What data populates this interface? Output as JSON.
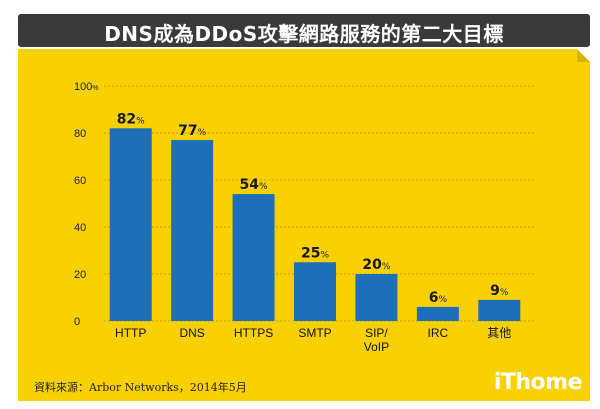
{
  "header": {
    "title": "DNS成為DDoS攻擊網路服務的第二大目標"
  },
  "footer": {
    "source": "資料來源：Arbor Networks，2014年5月",
    "brand": "iThome"
  },
  "colors": {
    "bar": "#1f6fb8",
    "panel": "#f9d103",
    "title_bg": "#3a3a3a",
    "label": "#1a1a1a"
  },
  "chart_data": {
    "type": "bar",
    "categories": [
      "HTTP",
      "DNS",
      "HTTPS",
      "SMTP",
      "SIP/ VoIP",
      "IRC",
      "其他"
    ],
    "category_lines": [
      [
        "HTTP"
      ],
      [
        "DNS"
      ],
      [
        "HTTPS"
      ],
      [
        "SMTP"
      ],
      [
        "SIP/",
        "VoIP"
      ],
      [
        "IRC"
      ],
      [
        "其他"
      ]
    ],
    "values": [
      82,
      77,
      54,
      25,
      20,
      6,
      9
    ],
    "value_unit": "%",
    "yticks": [
      "0",
      "20",
      "40",
      "60",
      "80",
      "100%"
    ],
    "ylim": [
      0,
      100
    ],
    "grid": true
  }
}
